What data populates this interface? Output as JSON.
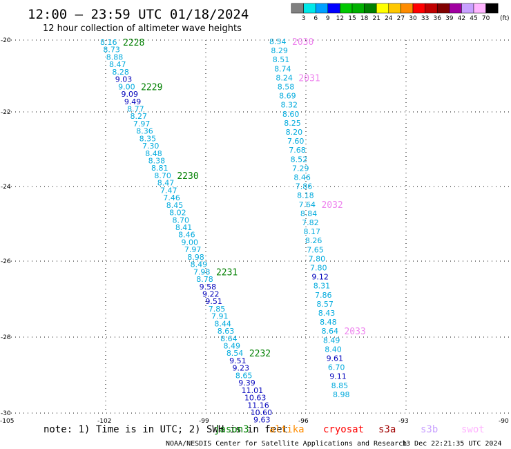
{
  "title": "12:00 — 23:59 UTC 01/18/2024",
  "subtitle": "12 hour collection of altimeter wave heights",
  "legend": {
    "unit": "(ft)",
    "bins": [
      {
        "label": "3",
        "color": "#808080"
      },
      {
        "label": "6",
        "color": "#00e8e8"
      },
      {
        "label": "9",
        "color": "#00a0ff"
      },
      {
        "label": "12",
        "color": "#0000ff"
      },
      {
        "label": "15",
        "color": "#00c800"
      },
      {
        "label": "18",
        "color": "#00b000"
      },
      {
        "label": "21",
        "color": "#008000"
      },
      {
        "label": "24",
        "color": "#ffff00"
      },
      {
        "label": "27",
        "color": "#ffc800"
      },
      {
        "label": "30",
        "color": "#ff8c00"
      },
      {
        "label": "33",
        "color": "#ff0000"
      },
      {
        "label": "36",
        "color": "#c00000"
      },
      {
        "label": "39",
        "color": "#800000"
      },
      {
        "label": "42",
        "color": "#a000a0"
      },
      {
        "label": "45",
        "color": "#c8a0ff"
      },
      {
        "label": "70",
        "color": "#ffb4ff"
      },
      {
        "label": "",
        "color": "#000000"
      }
    ]
  },
  "axes": {
    "lat_labels": [
      "-20",
      "-22",
      "-24",
      "-26",
      "-28",
      "-30"
    ],
    "lon_labels": [
      "-105",
      "-102",
      "-99",
      "-96",
      "-93",
      "-90"
    ]
  },
  "colors": {
    "light": "#00aadd",
    "dark": "#0000bb",
    "time_jason": "#008000",
    "time_swot": "#ee82ee"
  },
  "tracks": [
    {
      "name": "jason track",
      "times": [
        {
          "label": "2228",
          "row": 0
        },
        {
          "label": "2229",
          "row": 6
        },
        {
          "label": "2230",
          "row": 18
        },
        {
          "label": "2231",
          "row": 31
        },
        {
          "label": "2232",
          "row": 42
        }
      ],
      "values": [
        {
          "v": "8.16",
          "c": "light"
        },
        {
          "v": "8.73",
          "c": "light"
        },
        {
          "v": "8.88",
          "c": "light"
        },
        {
          "v": "8.47",
          "c": "light"
        },
        {
          "v": "8.28",
          "c": "light"
        },
        {
          "v": "9.03",
          "c": "dark"
        },
        {
          "v": "9.00",
          "c": "light"
        },
        {
          "v": "9.09",
          "c": "dark"
        },
        {
          "v": "9.49",
          "c": "dark"
        },
        {
          "v": "8.77",
          "c": "light"
        },
        {
          "v": "8.27",
          "c": "light"
        },
        {
          "v": "7.97",
          "c": "light"
        },
        {
          "v": "8.36",
          "c": "light"
        },
        {
          "v": "8.35",
          "c": "light"
        },
        {
          "v": "7.30",
          "c": "light"
        },
        {
          "v": "8.48",
          "c": "light"
        },
        {
          "v": "8.38",
          "c": "light"
        },
        {
          "v": "8.81",
          "c": "light"
        },
        {
          "v": "8.70",
          "c": "light"
        },
        {
          "v": "8.47",
          "c": "light"
        },
        {
          "v": "7.47",
          "c": "light"
        },
        {
          "v": "7.46",
          "c": "light"
        },
        {
          "v": "8.45",
          "c": "light"
        },
        {
          "v": "8.02",
          "c": "light"
        },
        {
          "v": "8.70",
          "c": "light"
        },
        {
          "v": "8.41",
          "c": "light"
        },
        {
          "v": "8.46",
          "c": "light"
        },
        {
          "v": "9.00",
          "c": "light"
        },
        {
          "v": "7.97",
          "c": "light"
        },
        {
          "v": "8.98",
          "c": "light"
        },
        {
          "v": "8.49",
          "c": "light"
        },
        {
          "v": "7.98",
          "c": "light"
        },
        {
          "v": "8.78",
          "c": "light"
        },
        {
          "v": "9.58",
          "c": "dark"
        },
        {
          "v": "9.22",
          "c": "dark"
        },
        {
          "v": "9.51",
          "c": "dark"
        },
        {
          "v": "7.85",
          "c": "light"
        },
        {
          "v": "7.91",
          "c": "light"
        },
        {
          "v": "8.44",
          "c": "light"
        },
        {
          "v": "8.63",
          "c": "light"
        },
        {
          "v": "8.64",
          "c": "light"
        },
        {
          "v": "8.49",
          "c": "light"
        },
        {
          "v": "8.54",
          "c": "light"
        },
        {
          "v": "9.51",
          "c": "dark"
        },
        {
          "v": "9.23",
          "c": "dark"
        },
        {
          "v": "8.65",
          "c": "light"
        },
        {
          "v": "9.39",
          "c": "dark"
        },
        {
          "v": "11.01",
          "c": "dark"
        },
        {
          "v": "10.63",
          "c": "dark"
        },
        {
          "v": "11.16",
          "c": "dark"
        },
        {
          "v": "10.60",
          "c": "dark"
        },
        {
          "v": "9.63",
          "c": "dark"
        }
      ]
    },
    {
      "name": "swot track",
      "times": [
        {
          "label": "2030",
          "row": 0
        },
        {
          "label": "2031",
          "row": 4
        },
        {
          "label": "2032",
          "row": 18
        },
        {
          "label": "2033",
          "row": 32
        }
      ],
      "values": [
        {
          "v": "8.54",
          "c": "light"
        },
        {
          "v": "8.29",
          "c": "light"
        },
        {
          "v": "8.51",
          "c": "light"
        },
        {
          "v": "8.74",
          "c": "light"
        },
        {
          "v": "8.24",
          "c": "light"
        },
        {
          "v": "8.58",
          "c": "light"
        },
        {
          "v": "8.69",
          "c": "light"
        },
        {
          "v": "8.32",
          "c": "light"
        },
        {
          "v": "8.60",
          "c": "light"
        },
        {
          "v": "8.25",
          "c": "light"
        },
        {
          "v": "8.20",
          "c": "light"
        },
        {
          "v": "7.60",
          "c": "light"
        },
        {
          "v": "7.68",
          "c": "light"
        },
        {
          "v": "8.52",
          "c": "light"
        },
        {
          "v": "7.29",
          "c": "light"
        },
        {
          "v": "8.46",
          "c": "light"
        },
        {
          "v": "7.86",
          "c": "light"
        },
        {
          "v": "8.18",
          "c": "light"
        },
        {
          "v": "7.64",
          "c": "light"
        },
        {
          "v": "8.84",
          "c": "light"
        },
        {
          "v": "7.82",
          "c": "light"
        },
        {
          "v": "8.17",
          "c": "light"
        },
        {
          "v": "8.26",
          "c": "light"
        },
        {
          "v": "7.65",
          "c": "light"
        },
        {
          "v": "7.80",
          "c": "light"
        },
        {
          "v": "7.80",
          "c": "light"
        },
        {
          "v": "9.12",
          "c": "dark"
        },
        {
          "v": "8.31",
          "c": "light"
        },
        {
          "v": "7.86",
          "c": "light"
        },
        {
          "v": "8.57",
          "c": "light"
        },
        {
          "v": "8.43",
          "c": "light"
        },
        {
          "v": "8.48",
          "c": "light"
        },
        {
          "v": "8.64",
          "c": "light"
        },
        {
          "v": "8.49",
          "c": "light"
        },
        {
          "v": "8.40",
          "c": "light"
        },
        {
          "v": "9.61",
          "c": "dark"
        },
        {
          "v": "6.70",
          "c": "light"
        },
        {
          "v": "9.11",
          "c": "dark"
        },
        {
          "v": "8.85",
          "c": "light"
        },
        {
          "v": "8.98",
          "c": "light"
        }
      ]
    }
  ],
  "note": {
    "text": "note:  1) Time is in UTC; 2) SWH is in feet",
    "satellites": [
      {
        "label": "jason3",
        "color": "#008000"
      },
      {
        "label": "altika",
        "color": "#ff8c00"
      },
      {
        "label": "cryosat",
        "color": "#ff0000"
      },
      {
        "label": "s3a",
        "color": "#a00000"
      },
      {
        "label": "s3b",
        "color": "#c8a0ff"
      },
      {
        "label": "swot",
        "color": "#ffb4ff"
      }
    ]
  },
  "footer": {
    "org": "NOAA/NESDIS Center for Satellite Applications and Research",
    "timestamp": "13 Dec 22:21:35 UTC 2024"
  }
}
